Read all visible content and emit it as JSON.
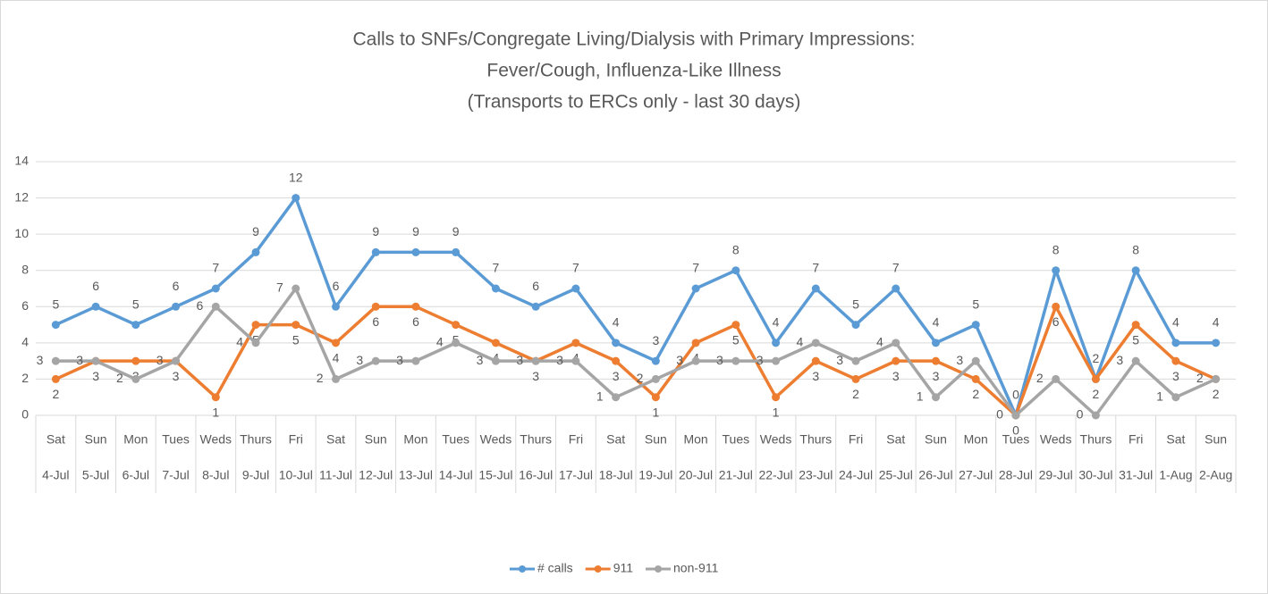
{
  "chart_data": {
    "type": "line",
    "title": [
      "Calls to SNFs/Congregate Living/Dialysis with Primary Impressions:",
      "Fever/Cough, Influenza-Like Illness",
      "(Transports to ERCs only - last 30 days)"
    ],
    "weekdays": [
      "Sat",
      "Sun",
      "Mon",
      "Tues",
      "Weds",
      "Thurs",
      "Fri",
      "Sat",
      "Sun",
      "Mon",
      "Tues",
      "Weds",
      "Thurs",
      "Fri",
      "Sat",
      "Sun",
      "Mon",
      "Tues",
      "Weds",
      "Thurs",
      "Fri",
      "Sat",
      "Sun",
      "Mon",
      "Tues",
      "Weds",
      "Thurs",
      "Fri",
      "Sat",
      "Sun"
    ],
    "categories": [
      "4-Jul",
      "5-Jul",
      "6-Jul",
      "7-Jul",
      "8-Jul",
      "9-Jul",
      "10-Jul",
      "11-Jul",
      "12-Jul",
      "13-Jul",
      "14-Jul",
      "15-Jul",
      "16-Jul",
      "17-Jul",
      "18-Jul",
      "19-Jul",
      "20-Jul",
      "21-Jul",
      "22-Jul",
      "23-Jul",
      "24-Jul",
      "25-Jul",
      "26-Jul",
      "27-Jul",
      "28-Jul",
      "29-Jul",
      "30-Jul",
      "31-Jul",
      "1-Aug",
      "2-Aug"
    ],
    "series": [
      {
        "name": "# calls",
        "color": "#5b9bd5",
        "values": [
          5,
          6,
          5,
          6,
          7,
          9,
          12,
          6,
          9,
          9,
          9,
          7,
          6,
          7,
          4,
          3,
          7,
          8,
          4,
          7,
          5,
          7,
          4,
          5,
          0,
          8,
          2,
          8,
          4,
          4
        ]
      },
      {
        "name": "911",
        "color": "#ed7d31",
        "values": [
          2,
          3,
          3,
          3,
          1,
          5,
          5,
          4,
          6,
          6,
          5,
          4,
          3,
          4,
          3,
          1,
          4,
          5,
          1,
          3,
          2,
          3,
          3,
          2,
          0,
          6,
          2,
          5,
          3,
          2
        ]
      },
      {
        "name": "non-911",
        "color": "#a5a5a5",
        "values": [
          3,
          3,
          2,
          3,
          6,
          4,
          7,
          2,
          3,
          3,
          4,
          3,
          3,
          3,
          1,
          2,
          3,
          3,
          3,
          4,
          3,
          4,
          1,
          3,
          0,
          2,
          0,
          3,
          1,
          2
        ]
      }
    ],
    "ylim": [
      0,
      14
    ],
    "yticks": [
      0,
      2,
      4,
      6,
      8,
      10,
      12,
      14
    ],
    "grid": true,
    "legend": "bottom"
  }
}
